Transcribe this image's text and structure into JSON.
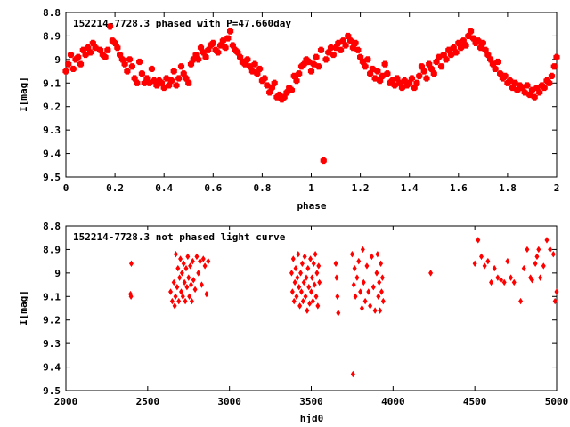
{
  "chart_data": [
    {
      "type": "scatter",
      "title": "152214-7728.3 phased with P=47.660day",
      "xlabel": "phase",
      "ylabel": "I[mag]",
      "xlim": [
        0,
        2
      ],
      "ylim": [
        8.8,
        9.5
      ],
      "y_inverted": true,
      "x_ticks": [
        "0",
        "0.2",
        "0.4",
        "0.6",
        "0.8",
        "1",
        "1.2",
        "1.4",
        "1.6",
        "1.8",
        "2"
      ],
      "y_ticks": [
        "8.8",
        "8.9",
        "9",
        "9.1",
        "9.2",
        "9.3",
        "9.4",
        "9.5"
      ],
      "marker_color": "#ff0000",
      "grid": false,
      "points": [
        [
          0.0,
          9.05
        ],
        [
          0.01,
          9.02
        ],
        [
          0.02,
          8.98
        ],
        [
          0.03,
          9.04
        ],
        [
          0.04,
          9.0
        ],
        [
          0.05,
          8.99
        ],
        [
          0.06,
          9.02
        ],
        [
          0.07,
          8.96
        ],
        [
          0.08,
          8.98
        ],
        [
          0.09,
          8.95
        ],
        [
          0.1,
          8.97
        ],
        [
          0.11,
          8.93
        ],
        [
          0.12,
          8.95
        ],
        [
          0.14,
          8.96
        ],
        [
          0.15,
          8.98
        ],
        [
          0.16,
          8.99
        ],
        [
          0.17,
          8.96
        ],
        [
          0.18,
          8.86
        ],
        [
          0.19,
          8.92
        ],
        [
          0.2,
          8.93
        ],
        [
          0.21,
          8.95
        ],
        [
          0.22,
          8.98
        ],
        [
          0.23,
          9.0
        ],
        [
          0.24,
          9.02
        ],
        [
          0.25,
          9.05
        ],
        [
          0.26,
          9.0
        ],
        [
          0.27,
          9.03
        ],
        [
          0.28,
          9.08
        ],
        [
          0.29,
          9.1
        ],
        [
          0.3,
          9.01
        ],
        [
          0.31,
          9.06
        ],
        [
          0.32,
          9.1
        ],
        [
          0.33,
          9.08
        ],
        [
          0.34,
          9.1
        ],
        [
          0.35,
          9.04
        ],
        [
          0.36,
          9.09
        ],
        [
          0.37,
          9.11
        ],
        [
          0.38,
          9.09
        ],
        [
          0.39,
          9.1
        ],
        [
          0.4,
          9.12
        ],
        [
          0.41,
          9.08
        ],
        [
          0.42,
          9.11
        ],
        [
          0.43,
          9.09
        ],
        [
          0.44,
          9.05
        ],
        [
          0.45,
          9.11
        ],
        [
          0.46,
          9.08
        ],
        [
          0.47,
          9.03
        ],
        [
          0.48,
          9.06
        ],
        [
          0.49,
          9.08
        ],
        [
          0.5,
          9.1
        ],
        [
          0.51,
          9.02
        ],
        [
          0.52,
          9.0
        ],
        [
          0.53,
          8.98
        ],
        [
          0.54,
          9.0
        ],
        [
          0.55,
          8.95
        ],
        [
          0.56,
          8.97
        ],
        [
          0.57,
          8.99
        ],
        [
          0.58,
          8.96
        ],
        [
          0.59,
          8.94
        ],
        [
          0.6,
          8.93
        ],
        [
          0.61,
          8.96
        ],
        [
          0.62,
          8.97
        ],
        [
          0.63,
          8.94
        ],
        [
          0.64,
          8.92
        ],
        [
          0.65,
          8.95
        ],
        [
          0.66,
          8.91
        ],
        [
          0.67,
          8.88
        ],
        [
          0.68,
          8.94
        ],
        [
          0.69,
          8.96
        ],
        [
          0.7,
          8.97
        ],
        [
          0.71,
          8.99
        ],
        [
          0.72,
          9.01
        ],
        [
          0.73,
          9.02
        ],
        [
          0.74,
          9.0
        ],
        [
          0.75,
          9.03
        ],
        [
          0.76,
          9.05
        ],
        [
          0.77,
          9.02
        ],
        [
          0.78,
          9.06
        ],
        [
          0.79,
          9.04
        ],
        [
          0.8,
          9.09
        ],
        [
          0.81,
          9.08
        ],
        [
          0.82,
          9.11
        ],
        [
          0.83,
          9.14
        ],
        [
          0.84,
          9.12
        ],
        [
          0.85,
          9.1
        ],
        [
          0.86,
          9.16
        ],
        [
          0.87,
          9.15
        ],
        [
          0.88,
          9.17
        ],
        [
          0.89,
          9.16
        ],
        [
          0.9,
          9.14
        ],
        [
          0.91,
          9.12
        ],
        [
          0.92,
          9.13
        ],
        [
          0.93,
          9.07
        ],
        [
          0.94,
          9.09
        ],
        [
          0.95,
          9.06
        ],
        [
          0.96,
          9.03
        ],
        [
          0.97,
          9.02
        ],
        [
          0.98,
          9.0
        ],
        [
          0.99,
          9.01
        ],
        [
          1.0,
          9.05
        ],
        [
          1.01,
          9.02
        ],
        [
          1.02,
          8.99
        ],
        [
          1.03,
          9.03
        ],
        [
          1.04,
          8.96
        ],
        [
          1.05,
          9.43
        ],
        [
          1.06,
          9.0
        ],
        [
          1.07,
          8.97
        ],
        [
          1.08,
          8.95
        ],
        [
          1.09,
          8.98
        ],
        [
          1.1,
          8.95
        ],
        [
          1.11,
          8.93
        ],
        [
          1.12,
          8.96
        ],
        [
          1.13,
          8.92
        ],
        [
          1.14,
          8.94
        ],
        [
          1.15,
          8.9
        ],
        [
          1.16,
          8.92
        ],
        [
          1.17,
          8.95
        ],
        [
          1.18,
          8.93
        ],
        [
          1.19,
          8.96
        ],
        [
          1.2,
          8.99
        ],
        [
          1.21,
          9.01
        ],
        [
          1.22,
          9.03
        ],
        [
          1.23,
          9.0
        ],
        [
          1.24,
          9.06
        ],
        [
          1.25,
          9.04
        ],
        [
          1.26,
          9.08
        ],
        [
          1.27,
          9.05
        ],
        [
          1.28,
          9.09
        ],
        [
          1.29,
          9.07
        ],
        [
          1.3,
          9.02
        ],
        [
          1.31,
          9.06
        ],
        [
          1.32,
          9.1
        ],
        [
          1.33,
          9.09
        ],
        [
          1.34,
          9.11
        ],
        [
          1.35,
          9.08
        ],
        [
          1.36,
          9.1
        ],
        [
          1.37,
          9.12
        ],
        [
          1.38,
          9.09
        ],
        [
          1.39,
          9.11
        ],
        [
          1.4,
          9.1
        ],
        [
          1.41,
          9.08
        ],
        [
          1.42,
          9.12
        ],
        [
          1.43,
          9.1
        ],
        [
          1.44,
          9.07
        ],
        [
          1.45,
          9.03
        ],
        [
          1.46,
          9.05
        ],
        [
          1.47,
          9.08
        ],
        [
          1.48,
          9.02
        ],
        [
          1.49,
          9.04
        ],
        [
          1.5,
          9.06
        ],
        [
          1.51,
          9.01
        ],
        [
          1.52,
          8.99
        ],
        [
          1.53,
          9.03
        ],
        [
          1.54,
          8.98
        ],
        [
          1.55,
          9.0
        ],
        [
          1.56,
          8.96
        ],
        [
          1.57,
          8.98
        ],
        [
          1.58,
          8.95
        ],
        [
          1.59,
          8.97
        ],
        [
          1.6,
          8.93
        ],
        [
          1.61,
          8.95
        ],
        [
          1.62,
          8.92
        ],
        [
          1.63,
          8.94
        ],
        [
          1.64,
          8.9
        ],
        [
          1.65,
          8.88
        ],
        [
          1.66,
          8.91
        ],
        [
          1.67,
          8.93
        ],
        [
          1.68,
          8.92
        ],
        [
          1.69,
          8.95
        ],
        [
          1.7,
          8.93
        ],
        [
          1.71,
          8.96
        ],
        [
          1.72,
          8.98
        ],
        [
          1.73,
          9.0
        ],
        [
          1.74,
          9.02
        ],
        [
          1.75,
          9.04
        ],
        [
          1.76,
          9.01
        ],
        [
          1.77,
          9.06
        ],
        [
          1.78,
          9.08
        ],
        [
          1.79,
          9.07
        ],
        [
          1.8,
          9.1
        ],
        [
          1.81,
          9.09
        ],
        [
          1.82,
          9.12
        ],
        [
          1.83,
          9.1
        ],
        [
          1.84,
          9.13
        ],
        [
          1.85,
          9.11
        ],
        [
          1.86,
          9.12
        ],
        [
          1.87,
          9.14
        ],
        [
          1.88,
          9.11
        ],
        [
          1.89,
          9.15
        ],
        [
          1.9,
          9.13
        ],
        [
          1.91,
          9.16
        ],
        [
          1.92,
          9.12
        ],
        [
          1.93,
          9.14
        ],
        [
          1.94,
          9.11
        ],
        [
          1.95,
          9.12
        ],
        [
          1.96,
          9.09
        ],
        [
          1.97,
          9.1
        ],
        [
          1.98,
          9.07
        ],
        [
          1.99,
          9.03
        ],
        [
          2.0,
          8.99
        ]
      ]
    },
    {
      "type": "scatter",
      "title": "152214-7728.3 not phased light curve",
      "xlabel": "hjd0",
      "ylabel": "I[mag]",
      "xlim": [
        2000,
        5000
      ],
      "ylim": [
        8.8,
        9.5
      ],
      "y_inverted": true,
      "x_ticks": [
        "2000",
        "2500",
        "3000",
        "3500",
        "4000",
        "4500",
        "5000"
      ],
      "y_ticks": [
        "8.8",
        "8.9",
        "9",
        "9.1",
        "9.2",
        "9.3",
        "9.4",
        "9.5"
      ],
      "marker_color": "#ff0000",
      "grid": false,
      "points": [
        [
          2395,
          9.09
        ],
        [
          2398,
          9.1
        ],
        [
          2400,
          8.96
        ],
        [
          2640,
          9.08
        ],
        [
          2650,
          9.12
        ],
        [
          2660,
          9.04
        ],
        [
          2665,
          9.14
        ],
        [
          2670,
          9.1
        ],
        [
          2672,
          8.92
        ],
        [
          2680,
          9.06
        ],
        [
          2685,
          8.98
        ],
        [
          2690,
          9.12
        ],
        [
          2695,
          9.02
        ],
        [
          2700,
          8.94
        ],
        [
          2705,
          9.08
        ],
        [
          2710,
          9.0
        ],
        [
          2715,
          9.1
        ],
        [
          2720,
          8.96
        ],
        [
          2725,
          9.04
        ],
        [
          2730,
          9.12
        ],
        [
          2735,
          8.98
        ],
        [
          2740,
          9.06
        ],
        [
          2745,
          8.93
        ],
        [
          2750,
          9.02
        ],
        [
          2755,
          9.1
        ],
        [
          2760,
          8.97
        ],
        [
          2765,
          9.05
        ],
        [
          2770,
          9.12
        ],
        [
          2775,
          8.95
        ],
        [
          2780,
          9.03
        ],
        [
          2790,
          9.07
        ],
        [
          2800,
          8.93
        ],
        [
          2810,
          9.0
        ],
        [
          2820,
          8.95
        ],
        [
          2830,
          9.05
        ],
        [
          2840,
          8.94
        ],
        [
          2850,
          8.97
        ],
        [
          2860,
          9.09
        ],
        [
          2870,
          8.95
        ],
        [
          3380,
          9.0
        ],
        [
          3385,
          9.08
        ],
        [
          3390,
          8.94
        ],
        [
          3395,
          9.12
        ],
        [
          3400,
          9.04
        ],
        [
          3405,
          8.98
        ],
        [
          3410,
          9.1
        ],
        [
          3415,
          9.02
        ],
        [
          3420,
          8.92
        ],
        [
          3425,
          9.06
        ],
        [
          3430,
          9.14
        ],
        [
          3435,
          9.0
        ],
        [
          3440,
          9.08
        ],
        [
          3445,
          8.96
        ],
        [
          3450,
          9.12
        ],
        [
          3455,
          9.04
        ],
        [
          3460,
          8.93
        ],
        [
          3465,
          9.1
        ],
        [
          3470,
          9.02
        ],
        [
          3475,
          9.16
        ],
        [
          3480,
          8.98
        ],
        [
          3485,
          9.06
        ],
        [
          3490,
          9.13
        ],
        [
          3495,
          8.94
        ],
        [
          3500,
          9.08
        ],
        [
          3505,
          9.02
        ],
        [
          3510,
          9.12
        ],
        [
          3515,
          8.96
        ],
        [
          3520,
          9.05
        ],
        [
          3525,
          8.92
        ],
        [
          3530,
          9.1
        ],
        [
          3535,
          9.0
        ],
        [
          3540,
          9.14
        ],
        [
          3545,
          8.97
        ],
        [
          3550,
          9.04
        ],
        [
          3650,
          8.96
        ],
        [
          3655,
          9.02
        ],
        [
          3660,
          9.1
        ],
        [
          3665,
          9.17
        ],
        [
          3750,
          8.92
        ],
        [
          3755,
          9.43
        ],
        [
          3760,
          9.05
        ],
        [
          3765,
          8.98
        ],
        [
          3770,
          9.1
        ],
        [
          3780,
          9.02
        ],
        [
          3790,
          8.95
        ],
        [
          3800,
          9.08
        ],
        [
          3810,
          9.15
        ],
        [
          3815,
          8.9
        ],
        [
          3820,
          9.04
        ],
        [
          3830,
          9.12
        ],
        [
          3840,
          8.97
        ],
        [
          3850,
          9.08
        ],
        [
          3860,
          9.14
        ],
        [
          3870,
          8.93
        ],
        [
          3880,
          9.06
        ],
        [
          3890,
          9.16
        ],
        [
          3900,
          9.0
        ],
        [
          3905,
          8.92
        ],
        [
          3910,
          9.1
        ],
        [
          3915,
          9.04
        ],
        [
          3920,
          9.16
        ],
        [
          3925,
          8.96
        ],
        [
          3930,
          9.08
        ],
        [
          3935,
          9.02
        ],
        [
          3940,
          9.12
        ],
        [
          4230,
          9.0
        ],
        [
          4500,
          8.96
        ],
        [
          4520,
          8.86
        ],
        [
          4540,
          8.93
        ],
        [
          4560,
          8.97
        ],
        [
          4580,
          8.95
        ],
        [
          4600,
          9.04
        ],
        [
          4620,
          8.98
        ],
        [
          4640,
          9.02
        ],
        [
          4660,
          9.03
        ],
        [
          4680,
          9.04
        ],
        [
          4700,
          8.95
        ],
        [
          4720,
          9.02
        ],
        [
          4740,
          9.04
        ],
        [
          4780,
          9.12
        ],
        [
          4800,
          8.98
        ],
        [
          4820,
          8.9
        ],
        [
          4840,
          9.02
        ],
        [
          4850,
          9.03
        ],
        [
          4870,
          8.96
        ],
        [
          4880,
          8.93
        ],
        [
          4890,
          8.9
        ],
        [
          4900,
          9.02
        ],
        [
          4920,
          8.97
        ],
        [
          4940,
          8.86
        ],
        [
          4960,
          8.9
        ],
        [
          4980,
          8.92
        ],
        [
          4990,
          9.12
        ],
        [
          5000,
          9.08
        ]
      ]
    }
  ]
}
